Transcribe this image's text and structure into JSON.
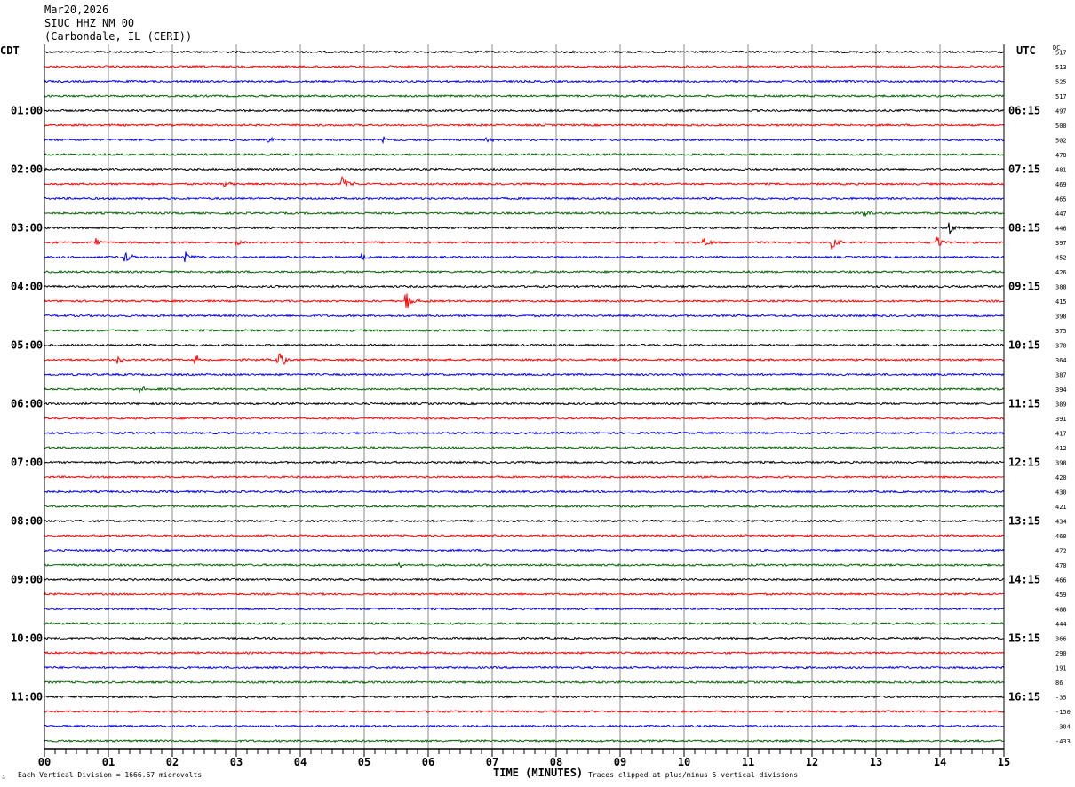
{
  "header": {
    "date": "Mar20,2026",
    "station": "SIUC HHZ NM 00",
    "location": "(Carbondale, IL (CERI))"
  },
  "left_timezone": "CDT",
  "right_timezone": "UTC",
  "dc_label": "DC",
  "footer": {
    "scale_note": "Each Vertical Division = 1666.67 microvolts",
    "clip_note": "Traces clipped at plus/minus 5 vertical divisions",
    "mark": "∴"
  },
  "chart_data": {
    "type": "line",
    "subtype": "helicorder",
    "xlabel": "TIME (MINUTES)",
    "x_ticks": [
      "00",
      "01",
      "02",
      "03",
      "04",
      "05",
      "06",
      "07",
      "08",
      "09",
      "10",
      "11",
      "12",
      "13",
      "14",
      "15"
    ],
    "xlim": [
      0,
      15
    ],
    "trace_colors": [
      "#000000",
      "#ff0000",
      "#0000ff",
      "#006400"
    ],
    "left_hour_labels": [
      "01:00",
      "02:00",
      "03:00",
      "04:00",
      "05:00",
      "06:00",
      "07:00",
      "08:00",
      "09:00",
      "10:00",
      "11:00"
    ],
    "right_hour_labels": [
      "06:15",
      "07:15",
      "08:15",
      "09:15",
      "10:15",
      "11:15",
      "12:15",
      "13:15",
      "14:15",
      "15:15",
      "16:15"
    ],
    "dc_offsets": [
      517,
      513,
      525,
      517,
      497,
      500,
      502,
      478,
      481,
      469,
      465,
      447,
      446,
      397,
      452,
      426,
      388,
      415,
      398,
      375,
      370,
      364,
      387,
      394,
      389,
      391,
      417,
      412,
      398,
      420,
      430,
      421,
      434,
      460,
      472,
      470,
      466,
      459,
      488,
      444,
      366,
      290,
      191,
      86,
      -35,
      -150,
      -304,
      -433
    ],
    "events": [
      {
        "row": 6,
        "minute": 3.5,
        "amp": 4
      },
      {
        "row": 6,
        "minute": 5.3,
        "amp": 4
      },
      {
        "row": 6,
        "minute": 6.9,
        "amp": 3
      },
      {
        "row": 9,
        "minute": 2.8,
        "amp": 5
      },
      {
        "row": 9,
        "minute": 4.65,
        "amp": 12
      },
      {
        "row": 11,
        "minute": 12.8,
        "amp": 5
      },
      {
        "row": 12,
        "minute": 14.15,
        "amp": 7
      },
      {
        "row": 13,
        "minute": 0.8,
        "amp": 5
      },
      {
        "row": 13,
        "minute": 3.0,
        "amp": 5
      },
      {
        "row": 13,
        "minute": 10.3,
        "amp": 7
      },
      {
        "row": 13,
        "minute": 12.3,
        "amp": 12
      },
      {
        "row": 13,
        "minute": 13.95,
        "amp": 9
      },
      {
        "row": 14,
        "minute": 1.25,
        "amp": 10
      },
      {
        "row": 14,
        "minute": 2.2,
        "amp": 6
      },
      {
        "row": 14,
        "minute": 4.95,
        "amp": 6
      },
      {
        "row": 17,
        "minute": 5.65,
        "amp": 14
      },
      {
        "row": 21,
        "minute": 1.15,
        "amp": 8
      },
      {
        "row": 21,
        "minute": 2.35,
        "amp": 7
      },
      {
        "row": 21,
        "minute": 3.65,
        "amp": 16
      },
      {
        "row": 23,
        "minute": 1.5,
        "amp": 4
      },
      {
        "row": 35,
        "minute": 5.55,
        "amp": 4
      }
    ]
  }
}
